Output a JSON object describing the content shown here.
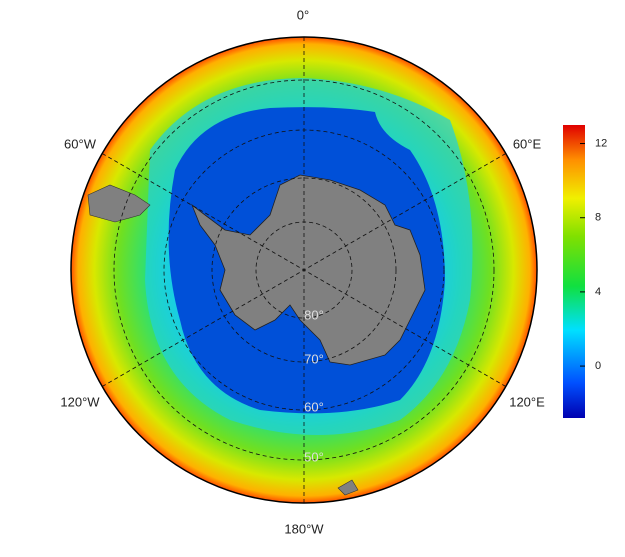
{
  "map": {
    "longitude_labels": [
      "0°",
      "60°E",
      "120°E",
      "180°W",
      "120°W",
      "60°W"
    ],
    "latitude_labels": [
      "80°",
      "70°",
      "60°",
      "50°"
    ]
  },
  "colorbar": {
    "range": [
      -2.8,
      13
    ],
    "ticks": [
      0,
      4,
      8,
      12
    ]
  }
}
